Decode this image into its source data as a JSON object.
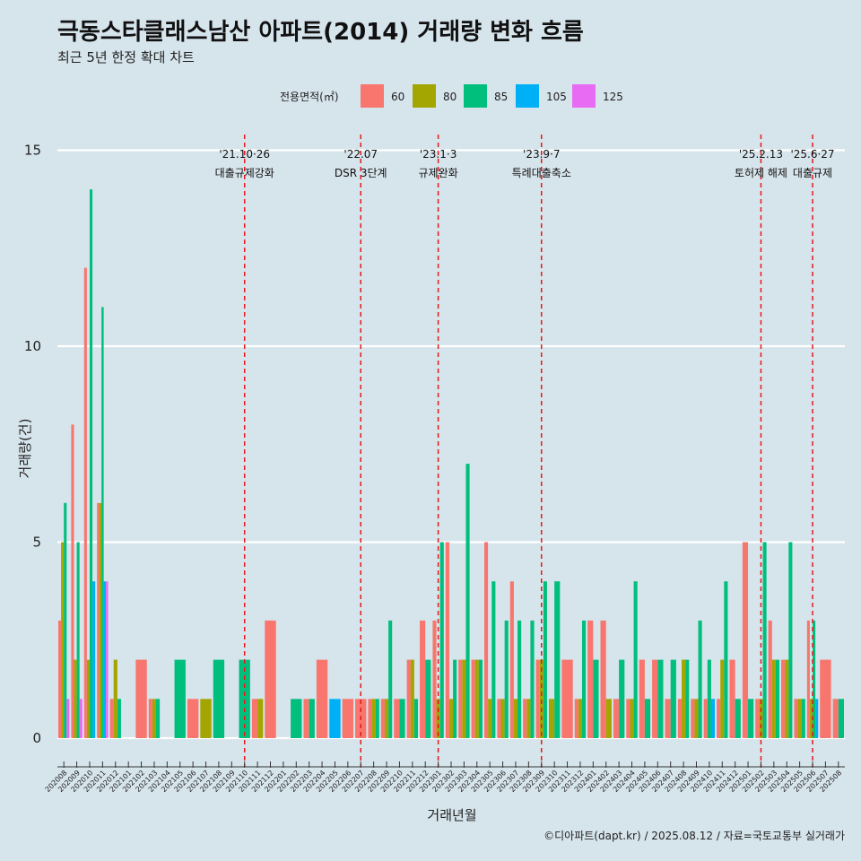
{
  "title": "극동스타클래스남산 아파트(2014) 거래량 변화 흐름",
  "subtitle": "최근 5년 한정 확대 차트",
  "caption": "©디아파트(dapt.kr) / 2025.08.12 / 자료=국토교통부 실거래가",
  "legend": {
    "title": "전용면적(㎡)",
    "items": [
      {
        "label": "60",
        "color": "#f8766d"
      },
      {
        "label": "80",
        "color": "#a3a500"
      },
      {
        "label": "85",
        "color": "#00bf7d"
      },
      {
        "label": "105",
        "color": "#00b0f6"
      },
      {
        "label": "125",
        "color": "#e76bf3"
      }
    ]
  },
  "chart_data": {
    "type": "bar",
    "xlabel": "거래년월",
    "ylabel": "거래량(건)",
    "ylim": [
      -0.6,
      15.5
    ],
    "yticks": [
      0,
      5,
      10,
      15
    ],
    "categories": [
      "202008",
      "202009",
      "202010",
      "202011",
      "202012",
      "202101",
      "202102",
      "202103",
      "202104",
      "202105",
      "202106",
      "202107",
      "202108",
      "202109",
      "202110",
      "202111",
      "202112",
      "202201",
      "202202",
      "202203",
      "202204",
      "202205",
      "202206",
      "202207",
      "202208",
      "202209",
      "202210",
      "202211",
      "202212",
      "202301",
      "202302",
      "202303",
      "202304",
      "202305",
      "202306",
      "202307",
      "202308",
      "202309",
      "202310",
      "202311",
      "202312",
      "202401",
      "202402",
      "202403",
      "202404",
      "202405",
      "202406",
      "202407",
      "202408",
      "202409",
      "202410",
      "202411",
      "202412",
      "202501",
      "202502",
      "202503",
      "202504",
      "202505",
      "202506",
      "202507",
      "202508"
    ],
    "series": [
      {
        "name": "60",
        "values": [
          3,
          8,
          12,
          6,
          1,
          0,
          2,
          1,
          0,
          0,
          1,
          0,
          0,
          0,
          0,
          1,
          3,
          0,
          0,
          1,
          2,
          0,
          1,
          1,
          1,
          1,
          1,
          2,
          3,
          3,
          5,
          2,
          2,
          5,
          1,
          4,
          1,
          2,
          0,
          2,
          1,
          3,
          3,
          1,
          1,
          2,
          2,
          1,
          1,
          1,
          1,
          1,
          2,
          5,
          1,
          3,
          2,
          1,
          3,
          2,
          1
        ]
      },
      {
        "name": "80",
        "values": [
          5,
          2,
          2,
          6,
          2,
          0,
          0,
          1,
          0,
          0,
          0,
          1,
          0,
          0,
          0,
          1,
          0,
          0,
          0,
          0,
          0,
          0,
          0,
          0,
          1,
          1,
          0,
          2,
          0,
          1,
          1,
          2,
          2,
          1,
          1,
          1,
          1,
          2,
          1,
          0,
          1,
          0,
          1,
          0,
          1,
          0,
          0,
          0,
          2,
          1,
          0,
          2,
          0,
          0,
          1,
          2,
          2,
          1,
          1,
          0,
          0
        ]
      },
      {
        "name": "85",
        "values": [
          6,
          5,
          14,
          11,
          1,
          0,
          0,
          1,
          0,
          2,
          0,
          0,
          2,
          0,
          2,
          0,
          0,
          0,
          1,
          1,
          0,
          0,
          0,
          0,
          1,
          3,
          1,
          1,
          2,
          5,
          2,
          7,
          2,
          4,
          3,
          3,
          3,
          4,
          4,
          0,
          3,
          2,
          0,
          2,
          4,
          1,
          2,
          2,
          2,
          3,
          2,
          4,
          1,
          1,
          5,
          2,
          5,
          1,
          3,
          0,
          1
        ]
      },
      {
        "name": "105",
        "values": [
          0,
          0,
          4,
          4,
          0,
          0,
          0,
          0,
          0,
          0,
          0,
          0,
          0,
          0,
          0,
          0,
          0,
          0,
          0,
          0,
          0,
          1,
          0,
          0,
          0,
          0,
          0,
          0,
          0,
          0,
          0,
          0,
          0,
          0,
          0,
          0,
          0,
          0,
          0,
          0,
          0,
          0,
          0,
          0,
          0,
          0,
          0,
          0,
          0,
          0,
          1,
          0,
          0,
          0,
          0,
          0,
          0,
          0,
          1,
          0,
          0
        ]
      },
      {
        "name": "125",
        "values": [
          1,
          1,
          0,
          4,
          0,
          0,
          0,
          0,
          0,
          0,
          0,
          0,
          0,
          0,
          0,
          0,
          0,
          0,
          0,
          0,
          0,
          0,
          0,
          0,
          0,
          0,
          0,
          0,
          0,
          0,
          0,
          0,
          0,
          0,
          0,
          0,
          0,
          0,
          0,
          0,
          0,
          0,
          0,
          0,
          0,
          0,
          0,
          0,
          0,
          0,
          0,
          0,
          0,
          0,
          0,
          0,
          0,
          0,
          0,
          0,
          0
        ]
      }
    ],
    "events": [
      {
        "month": "202110",
        "date": "'21.10·26",
        "label": "대출규제강화"
      },
      {
        "month": "202207",
        "date": "'22.07",
        "label": "DSR 3단계"
      },
      {
        "month": "202301",
        "date": "'23.1·3",
        "label": "규제완화"
      },
      {
        "month": "202309",
        "date": "'23.9·7",
        "label": "특례대출축소"
      },
      {
        "month": "202502",
        "date": "'25.2.13",
        "label": "토허제 해제"
      },
      {
        "month": "202506",
        "date": "'25.6·27",
        "label": "대출규제"
      }
    ],
    "event_line_color": "#e41a1c",
    "grid": true,
    "legend_position": "top"
  }
}
